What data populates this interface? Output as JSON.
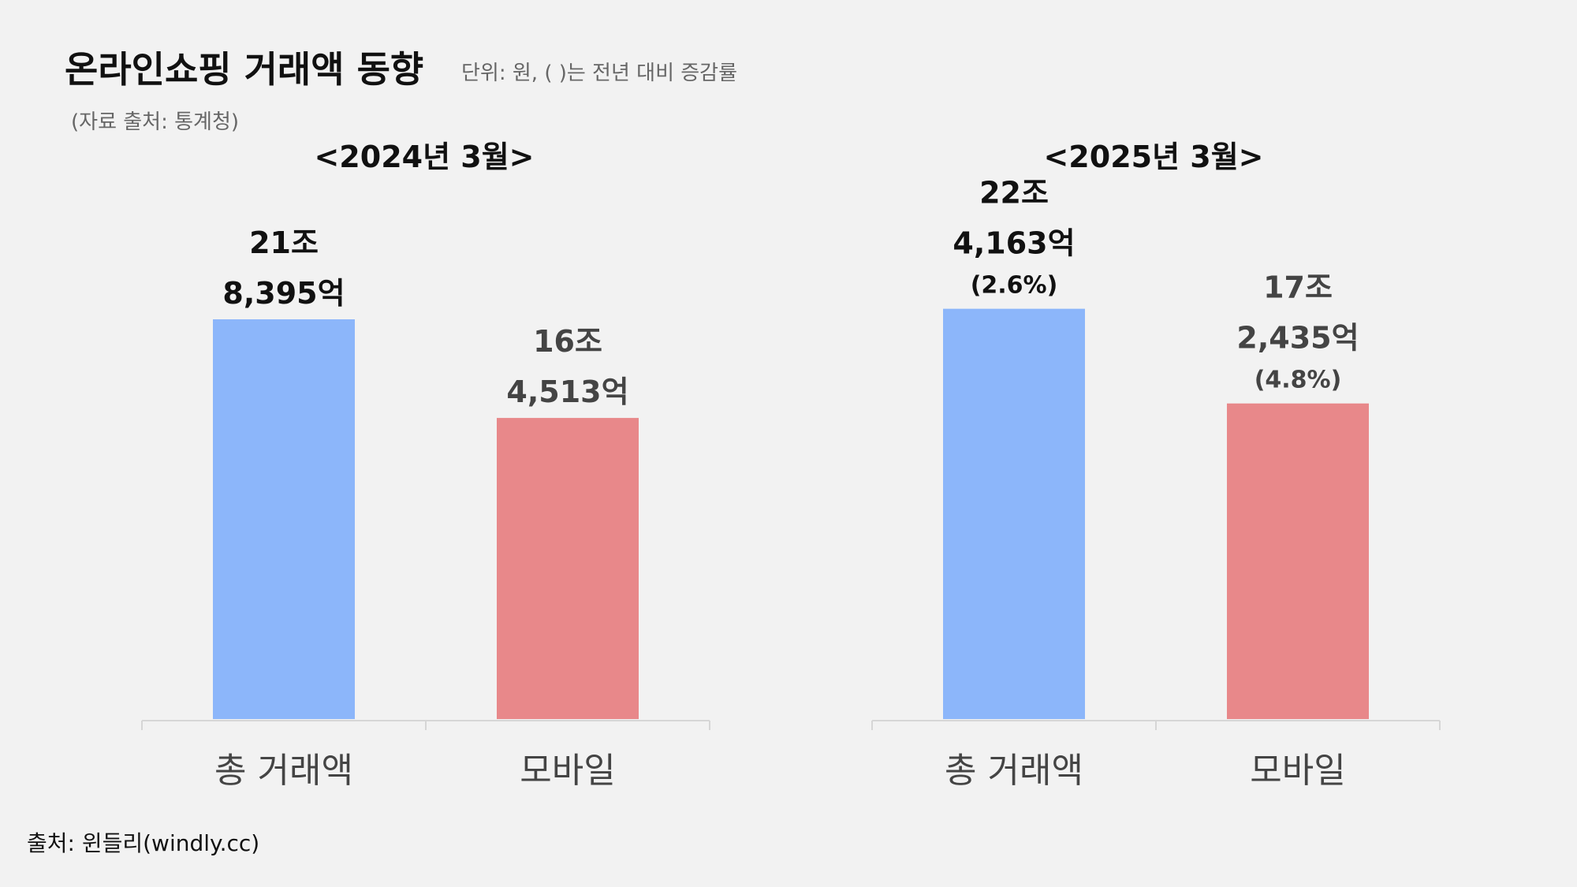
{
  "header": {
    "title": "온라인쇼핑 거래액 동향",
    "unit_note": "단위: 원,  ( )는 전년 대비 증감률",
    "data_source": "(자료 출처: 통계청)"
  },
  "footer": {
    "source": "출처: 윈들리(windly.cc)"
  },
  "colors": {
    "total": "#8cb6fa",
    "mobile": "#e8888a",
    "axis": "#d6d6d6",
    "label_dark": "#111111",
    "label_gray": "#444444"
  },
  "chart_data": [
    {
      "type": "bar",
      "title": "<2024년 3월>",
      "categories": [
        "총 거래액",
        "모바일"
      ],
      "values": [
        218395,
        164513
      ],
      "value_unit": "억 원",
      "ylim": [
        0,
        280000
      ],
      "data_labels": [
        {
          "line1": "21조",
          "line2": "8,395억",
          "change": ""
        },
        {
          "line1": "16조",
          "line2": "4,513억",
          "change": ""
        }
      ],
      "grid": false,
      "legend": "none"
    },
    {
      "type": "bar",
      "title": "<2025년 3월>",
      "categories": [
        "총 거래액",
        "모바일"
      ],
      "values": [
        224163,
        172435
      ],
      "value_unit": "억 원",
      "ylim": [
        0,
        280000
      ],
      "data_labels": [
        {
          "line1": "22조",
          "line2": "4,163억",
          "change": "(2.6%)"
        },
        {
          "line1": "17조",
          "line2": "2,435억",
          "change": "(4.8%)"
        }
      ],
      "grid": false,
      "legend": "none"
    }
  ]
}
